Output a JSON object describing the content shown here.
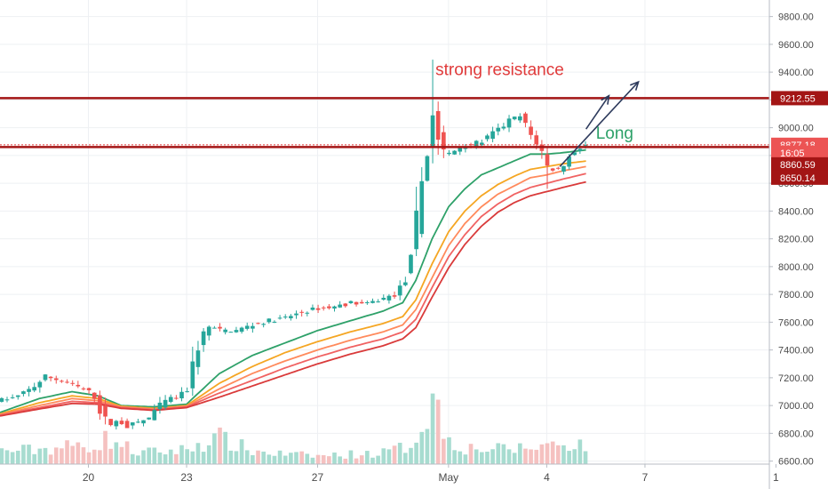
{
  "chart_data": {
    "type": "candlestick",
    "title": "",
    "xlabel": "",
    "ylabel": "",
    "ylim": [
      6500,
      9900
    ],
    "y_ticks": [
      "6600.00",
      "6800.00",
      "7000.00",
      "7200.00",
      "7400.00",
      "7600.00",
      "7800.00",
      "8000.00",
      "8200.00",
      "8400.00",
      "8600.00",
      "8800.00",
      "9000.00",
      "9200.00",
      "9400.00",
      "9600.00",
      "9800.00"
    ],
    "x_ticks": [
      {
        "label": "20",
        "t": 20
      },
      {
        "label": "23",
        "t": 23
      },
      {
        "label": "27",
        "t": 27
      },
      {
        "label": "May",
        "t": 31
      },
      {
        "label": "4",
        "t": 34
      },
      {
        "label": "7",
        "t": 37
      },
      {
        "label": "1",
        "t": 41
      }
    ],
    "x_range": [
      17.3,
      40.8
    ],
    "last_t": 35.2,
    "grid": true,
    "volume_ylim": [
      0,
      300
    ],
    "price_path": [
      [
        17.3,
        7040
      ],
      [
        17.8,
        7060
      ],
      [
        18.3,
        7130
      ],
      [
        18.7,
        7210
      ],
      [
        19.0,
        7190
      ],
      [
        19.4,
        7160
      ],
      [
        19.8,
        7120
      ],
      [
        20.0,
        7100
      ],
      [
        20.2,
        7060
      ],
      [
        20.4,
        6940
      ],
      [
        20.6,
        6860
      ],
      [
        20.9,
        6890
      ],
      [
        21.2,
        6850
      ],
      [
        21.5,
        6880
      ],
      [
        21.8,
        6900
      ],
      [
        22.1,
        6980
      ],
      [
        22.4,
        7040
      ],
      [
        22.7,
        7060
      ],
      [
        23.0,
        7100
      ],
      [
        23.2,
        7300
      ],
      [
        23.4,
        7480
      ],
      [
        23.7,
        7570
      ],
      [
        24.0,
        7540
      ],
      [
        24.5,
        7540
      ],
      [
        25.0,
        7580
      ],
      [
        25.5,
        7610
      ],
      [
        26.0,
        7630
      ],
      [
        26.5,
        7670
      ],
      [
        27.0,
        7700
      ],
      [
        27.5,
        7710
      ],
      [
        28.0,
        7740
      ],
      [
        28.5,
        7730
      ],
      [
        29.0,
        7770
      ],
      [
        29.4,
        7800
      ],
      [
        29.8,
        7950
      ],
      [
        30.0,
        8300
      ],
      [
        30.2,
        8650
      ],
      [
        30.4,
        8900
      ],
      [
        30.55,
        9150
      ],
      [
        30.7,
        8900
      ],
      [
        30.9,
        8800
      ],
      [
        31.1,
        8820
      ],
      [
        31.4,
        8870
      ],
      [
        31.7,
        8880
      ],
      [
        32.0,
        8900
      ],
      [
        32.3,
        8950
      ],
      [
        32.6,
        9000
      ],
      [
        32.9,
        9060
      ],
      [
        33.2,
        9080
      ],
      [
        33.5,
        8950
      ],
      [
        33.8,
        8860
      ],
      [
        34.0,
        8720
      ],
      [
        34.3,
        8690
      ],
      [
        34.6,
        8760
      ],
      [
        34.9,
        8850
      ],
      [
        35.2,
        8877
      ]
    ],
    "volume_path": [
      [
        17.3,
        40
      ],
      [
        18.5,
        45
      ],
      [
        19.5,
        55
      ],
      [
        20.3,
        60
      ],
      [
        20.6,
        80
      ],
      [
        21.5,
        35
      ],
      [
        22.5,
        40
      ],
      [
        23.0,
        45
      ],
      [
        23.3,
        60
      ],
      [
        24.0,
        80
      ],
      [
        25.0,
        40
      ],
      [
        26.0,
        30
      ],
      [
        27.0,
        25
      ],
      [
        28.0,
        30
      ],
      [
        29.0,
        35
      ],
      [
        29.8,
        55
      ],
      [
        30.2,
        120
      ],
      [
        30.5,
        220
      ],
      [
        30.8,
        120
      ],
      [
        31.0,
        80
      ],
      [
        31.5,
        50
      ],
      [
        32.5,
        45
      ],
      [
        33.5,
        50
      ],
      [
        34.0,
        60
      ],
      [
        34.5,
        65
      ],
      [
        35.2,
        60
      ]
    ],
    "ema_series": [
      {
        "color": "#2ea169",
        "values": [
          [
            17.3,
            6950
          ],
          [
            18.5,
            7050
          ],
          [
            19.5,
            7100
          ],
          [
            20.3,
            7070
          ],
          [
            21.0,
            7000
          ],
          [
            22.0,
            6990
          ],
          [
            23.0,
            7010
          ],
          [
            24.0,
            7230
          ],
          [
            25.0,
            7360
          ],
          [
            26.0,
            7450
          ],
          [
            27.0,
            7540
          ],
          [
            28.0,
            7610
          ],
          [
            29.0,
            7680
          ],
          [
            29.6,
            7740
          ],
          [
            30.0,
            7900
          ],
          [
            30.5,
            8200
          ],
          [
            31.0,
            8430
          ],
          [
            31.5,
            8560
          ],
          [
            32.0,
            8660
          ],
          [
            32.5,
            8710
          ],
          [
            33.0,
            8760
          ],
          [
            33.5,
            8810
          ],
          [
            34.0,
            8810
          ],
          [
            34.5,
            8820
          ],
          [
            35.2,
            8840
          ]
        ]
      },
      {
        "color": "#f5a623",
        "values": [
          [
            17.3,
            6940
          ],
          [
            18.5,
            7020
          ],
          [
            19.5,
            7070
          ],
          [
            20.3,
            7050
          ],
          [
            21.0,
            6995
          ],
          [
            22.0,
            6980
          ],
          [
            23.0,
            7000
          ],
          [
            24.0,
            7160
          ],
          [
            25.0,
            7280
          ],
          [
            26.0,
            7380
          ],
          [
            27.0,
            7460
          ],
          [
            28.0,
            7530
          ],
          [
            29.0,
            7590
          ],
          [
            29.6,
            7640
          ],
          [
            30.0,
            7760
          ],
          [
            30.5,
            8020
          ],
          [
            31.0,
            8250
          ],
          [
            31.5,
            8400
          ],
          [
            32.0,
            8510
          ],
          [
            32.5,
            8590
          ],
          [
            33.0,
            8650
          ],
          [
            33.5,
            8700
          ],
          [
            34.0,
            8720
          ],
          [
            34.5,
            8740
          ],
          [
            35.2,
            8760
          ]
        ]
      },
      {
        "color": "#ff8a5c",
        "values": [
          [
            17.3,
            6935
          ],
          [
            18.5,
            7000
          ],
          [
            19.5,
            7050
          ],
          [
            20.3,
            7035
          ],
          [
            21.0,
            6990
          ],
          [
            22.0,
            6975
          ],
          [
            23.0,
            6995
          ],
          [
            24.0,
            7120
          ],
          [
            25.0,
            7230
          ],
          [
            26.0,
            7320
          ],
          [
            27.0,
            7400
          ],
          [
            28.0,
            7470
          ],
          [
            29.0,
            7530
          ],
          [
            29.6,
            7580
          ],
          [
            30.0,
            7690
          ],
          [
            30.5,
            7920
          ],
          [
            31.0,
            8150
          ],
          [
            31.5,
            8310
          ],
          [
            32.0,
            8430
          ],
          [
            32.5,
            8520
          ],
          [
            33.0,
            8580
          ],
          [
            33.5,
            8640
          ],
          [
            34.0,
            8660
          ],
          [
            34.5,
            8690
          ],
          [
            35.2,
            8720
          ]
        ]
      },
      {
        "color": "#f06262",
        "values": [
          [
            17.3,
            6930
          ],
          [
            18.5,
            6985
          ],
          [
            19.5,
            7030
          ],
          [
            20.3,
            7020
          ],
          [
            21.0,
            6985
          ],
          [
            22.0,
            6970
          ],
          [
            23.0,
            6990
          ],
          [
            24.0,
            7090
          ],
          [
            25.0,
            7180
          ],
          [
            26.0,
            7270
          ],
          [
            27.0,
            7350
          ],
          [
            28.0,
            7420
          ],
          [
            29.0,
            7480
          ],
          [
            29.6,
            7530
          ],
          [
            30.0,
            7620
          ],
          [
            30.5,
            7850
          ],
          [
            31.0,
            8070
          ],
          [
            31.5,
            8230
          ],
          [
            32.0,
            8360
          ],
          [
            32.5,
            8450
          ],
          [
            33.0,
            8520
          ],
          [
            33.5,
            8570
          ],
          [
            34.0,
            8600
          ],
          [
            34.5,
            8630
          ],
          [
            35.2,
            8670
          ]
        ]
      },
      {
        "color": "#d93a3a",
        "values": [
          [
            17.3,
            6925
          ],
          [
            18.5,
            6975
          ],
          [
            19.5,
            7015
          ],
          [
            20.3,
            7010
          ],
          [
            21.0,
            6980
          ],
          [
            22.0,
            6965
          ],
          [
            23.0,
            6985
          ],
          [
            24.0,
            7060
          ],
          [
            25.0,
            7140
          ],
          [
            26.0,
            7220
          ],
          [
            27.0,
            7300
          ],
          [
            28.0,
            7370
          ],
          [
            29.0,
            7430
          ],
          [
            29.6,
            7480
          ],
          [
            30.0,
            7560
          ],
          [
            30.5,
            7780
          ],
          [
            31.0,
            7990
          ],
          [
            31.5,
            8160
          ],
          [
            32.0,
            8290
          ],
          [
            32.5,
            8390
          ],
          [
            33.0,
            8460
          ],
          [
            33.5,
            8510
          ],
          [
            34.0,
            8540
          ],
          [
            34.5,
            8570
          ],
          [
            35.2,
            8610
          ]
        ]
      }
    ],
    "horizontal_lines": [
      {
        "value": 9212.55,
        "label": "9212.55",
        "color": "#a31515",
        "style": "solid"
      },
      {
        "value": 8877.18,
        "label": "8877.18",
        "color": "#e03a3a",
        "style": "dotted"
      },
      {
        "value": 8860.59,
        "label": "8860.59",
        "color": "#a31515",
        "style": "solid"
      }
    ],
    "price_tags": [
      {
        "value": 9212.55,
        "label": "9212.55",
        "bg": "#a31515",
        "row": 9212.55
      },
      {
        "value": 8877.18,
        "label": "8877.18",
        "bg": "#ec5454",
        "row": 8877.18
      },
      {
        "value": 8800,
        "label": "16:05",
        "bg": "#ec5454",
        "row": 8820
      },
      {
        "value": 8860.59,
        "label": "8860.59",
        "bg": "#a31515",
        "row": 8736
      },
      {
        "value": 8650.14,
        "label": "8650.14",
        "bg": "#a31515",
        "row": 8640
      }
    ],
    "annotations": [
      {
        "text": "strong resistance",
        "t": 30.6,
        "value": 9380,
        "color": "#e03a3a"
      },
      {
        "text": "Long",
        "t": 35.5,
        "value": 8920,
        "color": "#2ea169"
      }
    ],
    "arrows": [
      {
        "from": [
          34.4,
          8720
        ],
        "to": [
          36.8,
          9330
        ]
      },
      {
        "from": [
          35.2,
          8990
        ],
        "to": [
          35.9,
          9230
        ]
      }
    ],
    "colors": {
      "up": "#26a69a",
      "down": "#ef5350",
      "up_vol": "#a7dcd0",
      "down_vol": "#f5c1c0",
      "grid": "#eef0f3",
      "arrow": "#2d3a5c"
    }
  }
}
